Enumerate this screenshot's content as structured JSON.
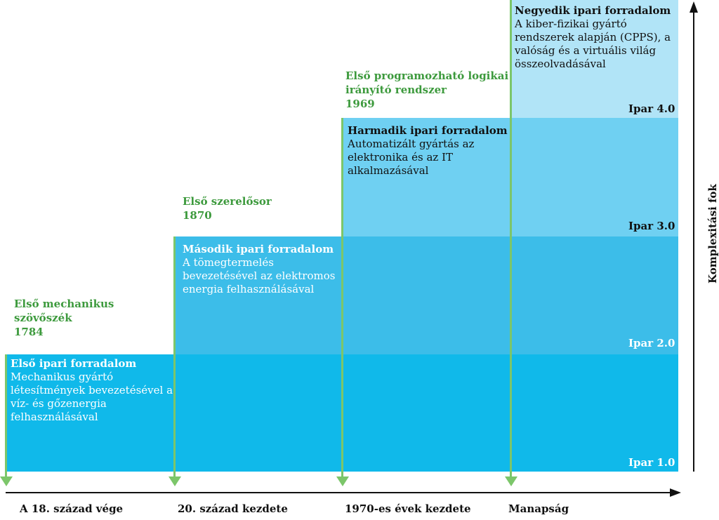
{
  "colors": {
    "level1": "#10b9ea",
    "level2": "#3cbde9",
    "level3": "#6fd0f2",
    "level4": "#b1e4f7",
    "milestone": "#3d9a3d",
    "connector": "#7cc66a"
  },
  "eras": [
    {
      "title": "Első ipari forradalom",
      "desc": [
        "Mechanikus gyártó",
        "létesítmények bevezetésével a",
        "víz- és gőzenergia",
        "felhasználásával"
      ]
    },
    {
      "title": "Második ipari forradalom",
      "desc": [
        "A tömegtermelés",
        "bevezetésével az elektromos",
        "energia felhasználásával"
      ]
    },
    {
      "title": "Harmadik ipari forradalom",
      "desc": [
        "Automatizált gyártás az",
        "elektronika és az IT",
        "alkalmazásával"
      ]
    },
    {
      "title": "Negyedik ipari forradalom",
      "desc": [
        "A kiber-fizikai gyártó",
        "rendszerek alapján (CPPS), a",
        "valóság és a virtuális világ",
        "összeolvadásával"
      ]
    }
  ],
  "milestones": [
    {
      "lines": [
        "Első mechanikus",
        "szövőszék",
        "1784"
      ]
    },
    {
      "lines": [
        "Első szerelősor",
        "1870"
      ]
    },
    {
      "lines": [
        "Első programozható logikai",
        "irányító rendszer",
        "1969"
      ]
    }
  ],
  "levels": [
    "Ipar 1.0",
    "Ipar 2.0",
    "Ipar 3.0",
    "Ipar 4.0"
  ],
  "timeline": [
    "A 18. század vége",
    "20. század kezdete",
    "1970-es évek kezdete",
    "Manapság"
  ],
  "y_axis_label": "Komplexitási fok"
}
